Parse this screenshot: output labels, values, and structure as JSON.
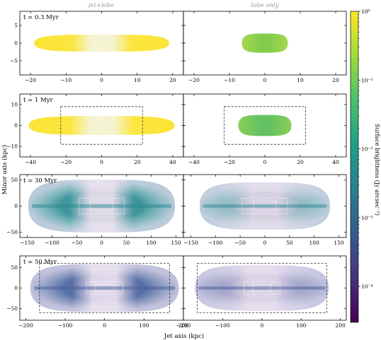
{
  "column_titles": [
    "jet+lobe",
    "lobe only"
  ],
  "xlabel": "Jet axis (kpc)",
  "ylabel": "Minor axis (kpc)",
  "colorbar": {
    "label": "Surface brightness (Jy arcsec⁻²)",
    "scale": "log",
    "range": [
      3e-05,
      1
    ],
    "ticks": [
      {
        "value": 1,
        "label": "10⁰"
      },
      {
        "value": 0.1,
        "label": "10⁻¹"
      },
      {
        "value": 0.01,
        "label": "10⁻²"
      },
      {
        "value": 0.001,
        "label": "10⁻³"
      },
      {
        "value": 0.0001,
        "label": "10⁻⁴"
      }
    ],
    "colormap": [
      "#440154",
      "#46327e",
      "#365c8d",
      "#277f8e",
      "#1fa187",
      "#4ac16d",
      "#a0da39",
      "#fde725"
    ]
  },
  "chart_data": [
    {
      "type": "heatmap",
      "panel": "jet+lobe",
      "time_label": "t = 0.3 Myr",
      "xlim": [
        -23,
        23
      ],
      "ylim": [
        -9,
        9
      ],
      "xticks": [
        -20,
        -10,
        0,
        10,
        20
      ],
      "xtick_labels": [
        "−20",
        "−10",
        "0",
        "10",
        "20"
      ],
      "yticks": [
        -5,
        0,
        5
      ],
      "ytick_labels": [
        "−5",
        "0",
        "5"
      ],
      "source": {
        "half_length": 19,
        "half_width": 2.4,
        "color": "#fbe32a",
        "core_color": "#f3f1c8"
      },
      "boxes": []
    },
    {
      "type": "heatmap",
      "panel": "lobe only",
      "xlim": [
        -23,
        23
      ],
      "ylim": [
        -9,
        9
      ],
      "xticks": [
        -20,
        -10,
        0,
        10,
        20
      ],
      "xtick_labels": [
        "−20",
        "−10",
        "0",
        "10",
        "20"
      ],
      "yticks": [
        -5,
        0,
        5
      ],
      "ytick_labels": [
        "",
        "",
        ""
      ],
      "source": {
        "half_length": 6.5,
        "half_width": 2.7,
        "color": "#9bd53c",
        "core_color": "#7cc943"
      },
      "boxes": []
    },
    {
      "type": "heatmap",
      "panel": "jet+lobe",
      "time_label": "t = 1 Myr",
      "xlim": [
        -46,
        46
      ],
      "ylim": [
        -15,
        15
      ],
      "xticks": [
        -40,
        -20,
        0,
        20,
        40
      ],
      "xtick_labels": [
        "−40",
        "−20",
        "0",
        "20",
        "40"
      ],
      "yticks": [
        -10,
        0,
        10
      ],
      "ytick_labels": [
        "−10",
        "0",
        "10"
      ],
      "source": {
        "half_length": 41,
        "half_width": 4.5,
        "color": "#fbe32a",
        "core_color": "#f3f1c8"
      },
      "boxes": [
        {
          "x": [
            -23,
            23
          ],
          "y": [
            -9,
            9
          ],
          "style": "dashed",
          "color": "#333333"
        }
      ]
    },
    {
      "type": "heatmap",
      "panel": "lobe only",
      "xlim": [
        -46,
        46
      ],
      "ylim": [
        -15,
        15
      ],
      "xticks": [
        -40,
        -20,
        0,
        20,
        40
      ],
      "xtick_labels": [
        "−40",
        "−20",
        "0",
        "20",
        "40"
      ],
      "yticks": [
        -10,
        0,
        10
      ],
      "ytick_labels": [
        "",
        "",
        ""
      ],
      "source": {
        "half_length": 15,
        "half_width": 5,
        "color": "#7cc943",
        "core_color": "#5cbf5a"
      },
      "boxes": [
        {
          "x": [
            -23,
            23
          ],
          "y": [
            -9,
            9
          ],
          "style": "dashed",
          "color": "#333333"
        }
      ]
    },
    {
      "type": "heatmap",
      "panel": "jet+lobe",
      "time_label": "t = 30 Myr",
      "xlim": [
        -165,
        165
      ],
      "ylim": [
        -60,
        60
      ],
      "xticks": [
        -150,
        -100,
        -50,
        0,
        50,
        100,
        150
      ],
      "xtick_labels": [
        "−150",
        "−100",
        "−50",
        "0",
        "50",
        "100",
        "150"
      ],
      "yticks": [
        -50,
        0,
        50
      ],
      "ytick_labels": [
        "−50",
        "0",
        "50"
      ],
      "source": {
        "half_length": 148,
        "half_width": 50,
        "color": "#2a8a92",
        "core_color": "#d5cfe0"
      },
      "boxes": [
        {
          "x": [
            -46,
            46
          ],
          "y": [
            -15,
            15
          ],
          "style": "dotted",
          "color": "#ffffff"
        },
        {
          "x": [
            -23,
            23
          ],
          "y": [
            -9,
            9
          ],
          "style": "dotted",
          "color": "#ffffff"
        }
      ]
    },
    {
      "type": "heatmap",
      "panel": "lobe only",
      "xlim": [
        -165,
        165
      ],
      "ylim": [
        -60,
        60
      ],
      "xticks": [
        -150,
        -100,
        -50,
        0,
        50,
        100,
        150
      ],
      "xtick_labels": [
        "−150",
        "−100",
        "−50",
        "0",
        "50",
        "100",
        "150"
      ],
      "yticks": [
        -50,
        0,
        50
      ],
      "ytick_labels": [
        "",
        "",
        ""
      ],
      "source": {
        "half_length": 132,
        "half_width": 45,
        "color": "#2a8a92",
        "core_color": "#d5cfe0"
      },
      "boxes": [
        {
          "x": [
            -46,
            46
          ],
          "y": [
            -15,
            15
          ],
          "style": "dotted",
          "color": "#ffffff"
        },
        {
          "x": [
            -23,
            23
          ],
          "y": [
            -9,
            9
          ],
          "style": "dotted",
          "color": "#ffffff"
        }
      ]
    },
    {
      "type": "heatmap",
      "panel": "jet+lobe",
      "time_label": "t = 50 Myr",
      "xlim": [
        -215,
        200
      ],
      "ylim": [
        -78,
        78
      ],
      "xticks": [
        -200,
        -100,
        0,
        100,
        200
      ],
      "xtick_labels": [
        "−200",
        "−100",
        "0",
        "100",
        "200"
      ],
      "yticks": [
        -50,
        0,
        50
      ],
      "ytick_labels": [
        "−50",
        "0",
        "50"
      ],
      "source": {
        "half_length": 188,
        "half_width": 58,
        "color": "#46609b",
        "core_color": "#d9d0e4"
      },
      "boxes": [
        {
          "x": [
            -165,
            165
          ],
          "y": [
            -60,
            60
          ],
          "style": "dashed",
          "color": "#333333"
        },
        {
          "x": [
            -46,
            46
          ],
          "y": [
            -15,
            15
          ],
          "style": "dotted",
          "color": "#ffffff"
        },
        {
          "x": [
            -23,
            23
          ],
          "y": [
            -9,
            9
          ],
          "style": "dotted",
          "color": "#ffffff"
        }
      ]
    },
    {
      "type": "heatmap",
      "panel": "lobe only",
      "xlim": [
        -200,
        215
      ],
      "ylim": [
        -78,
        78
      ],
      "xticks": [
        -200,
        -100,
        0,
        100,
        200
      ],
      "xtick_labels": [
        "−200",
        "−100",
        "0",
        "100",
        "200"
      ],
      "yticks": [
        -50,
        0,
        50
      ],
      "ytick_labels": [
        "",
        "",
        ""
      ],
      "source": {
        "half_length": 170,
        "half_width": 55,
        "color": "#4a5b9c",
        "core_color": "#d9d0e4"
      },
      "boxes": [
        {
          "x": [
            -165,
            165
          ],
          "y": [
            -60,
            60
          ],
          "style": "dashed",
          "color": "#333333"
        },
        {
          "x": [
            -46,
            46
          ],
          "y": [
            -15,
            15
          ],
          "style": "dotted",
          "color": "#ffffff"
        },
        {
          "x": [
            -23,
            23
          ],
          "y": [
            -9,
            9
          ],
          "style": "dotted",
          "color": "#ffffff"
        }
      ]
    }
  ]
}
